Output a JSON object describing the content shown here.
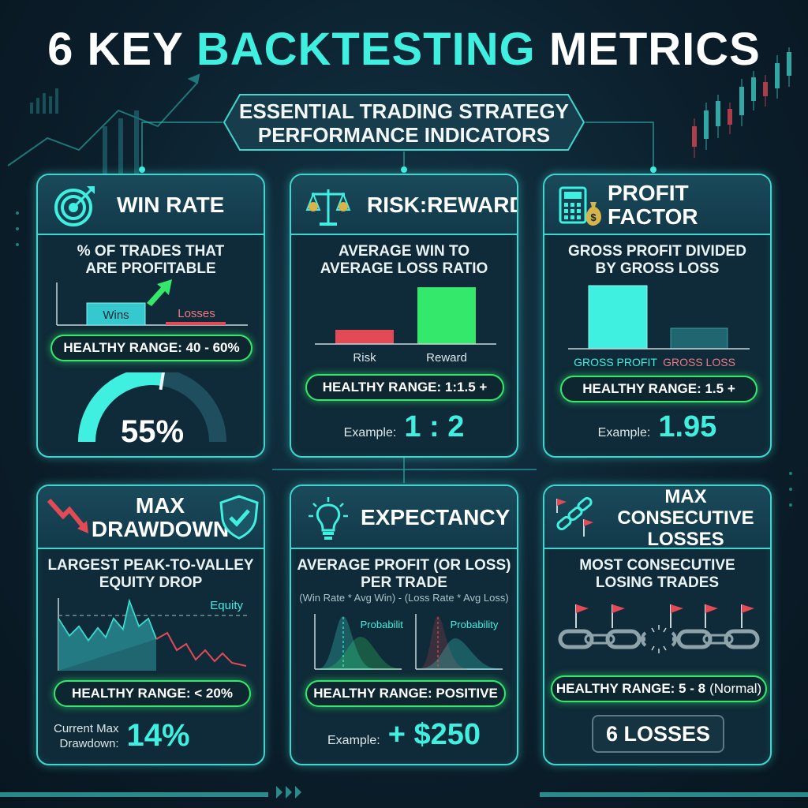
{
  "header": {
    "title_part1": "6 KEY",
    "title_accent": "BACKTESTING",
    "title_part2": "METRICS",
    "subtitle_line1": "ESSENTIAL TRADING STRATEGY",
    "subtitle_line2": "PERFORMANCE INDICATORS"
  },
  "colors": {
    "accent": "#3ff0e0",
    "healthy": "#34e86b",
    "loss": "#e24a55",
    "card_border": "#3fd6cf"
  },
  "cards": {
    "win_rate": {
      "icon": "target-icon",
      "title": "WIN RATE",
      "desc_line1": "% OF TRADES THAT",
      "desc_line2": "ARE PROFITABLE",
      "wins_label": "Wins",
      "losses_label": "Losses",
      "healthy_range": "HEALTHY RANGE: 40 - 60%",
      "value_fraction": 0.55,
      "value": "55%"
    },
    "risk_reward": {
      "icon": "scales-icon",
      "title": "RISK:REWARD",
      "desc_line1": "AVERAGE WIN TO",
      "desc_line2": "AVERAGE LOSS RATIO",
      "risk_label": "Risk",
      "reward_label": "Reward",
      "healthy_range": "HEALTHY RANGE: 1:1.5 +",
      "example_label": "Example:",
      "example_value": "1 : 2"
    },
    "profit_factor": {
      "icon": "calculator-moneybag-icon",
      "title": "PROFIT FACTOR",
      "desc_line1": "GROSS PROFIT DIVIDED",
      "desc_line2": "BY GROSS LOSS",
      "gross_profit_label": "GROSS PROFIT",
      "gross_loss_label": "GROSS LOSS",
      "healthy_range": "HEALTHY RANGE: 1.5 +",
      "example_label": "Example:",
      "example_value": "1.95"
    },
    "max_drawdown": {
      "icon": "falling-arrow-shield-icon",
      "title_line1": "MAX",
      "title_line2": "DRAWDOWN",
      "desc_line1": "LARGEST PEAK-TO-VALLEY",
      "desc_line2": "EQUITY DROP",
      "equity_label": "Equity",
      "healthy_range": "HEALTHY RANGE: < 20%",
      "current_label_line1": "Current Max",
      "current_label_line2": "Drawdown:",
      "current_value": "14%"
    },
    "expectancy": {
      "icon": "lightbulb-icon",
      "title": "EXPECTANCY",
      "desc_line1": "AVERAGE PROFIT (OR LOSS)",
      "desc_line2": "PER TRADE",
      "formula": "(Win Rate * Avg Win) - (Loss Rate * Avg Loss)",
      "probability_label": "Probability",
      "healthy_range": "HEALTHY RANGE: POSITIVE",
      "example_label": "Example:",
      "example_value": "+ $250"
    },
    "max_consecutive_losses": {
      "icon": "broken-chain-flags-icon",
      "title_line1": "MAX CONSECUTIVE",
      "title_line2": "LOSSES",
      "desc_line1": "MOST CONSECUTIVE",
      "desc_line2": "LOSING TRADES",
      "healthy_range": "HEALTHY RANGE: 5 - 8",
      "healthy_range_note": "(Normal)",
      "value": "6 LOSSES"
    }
  }
}
